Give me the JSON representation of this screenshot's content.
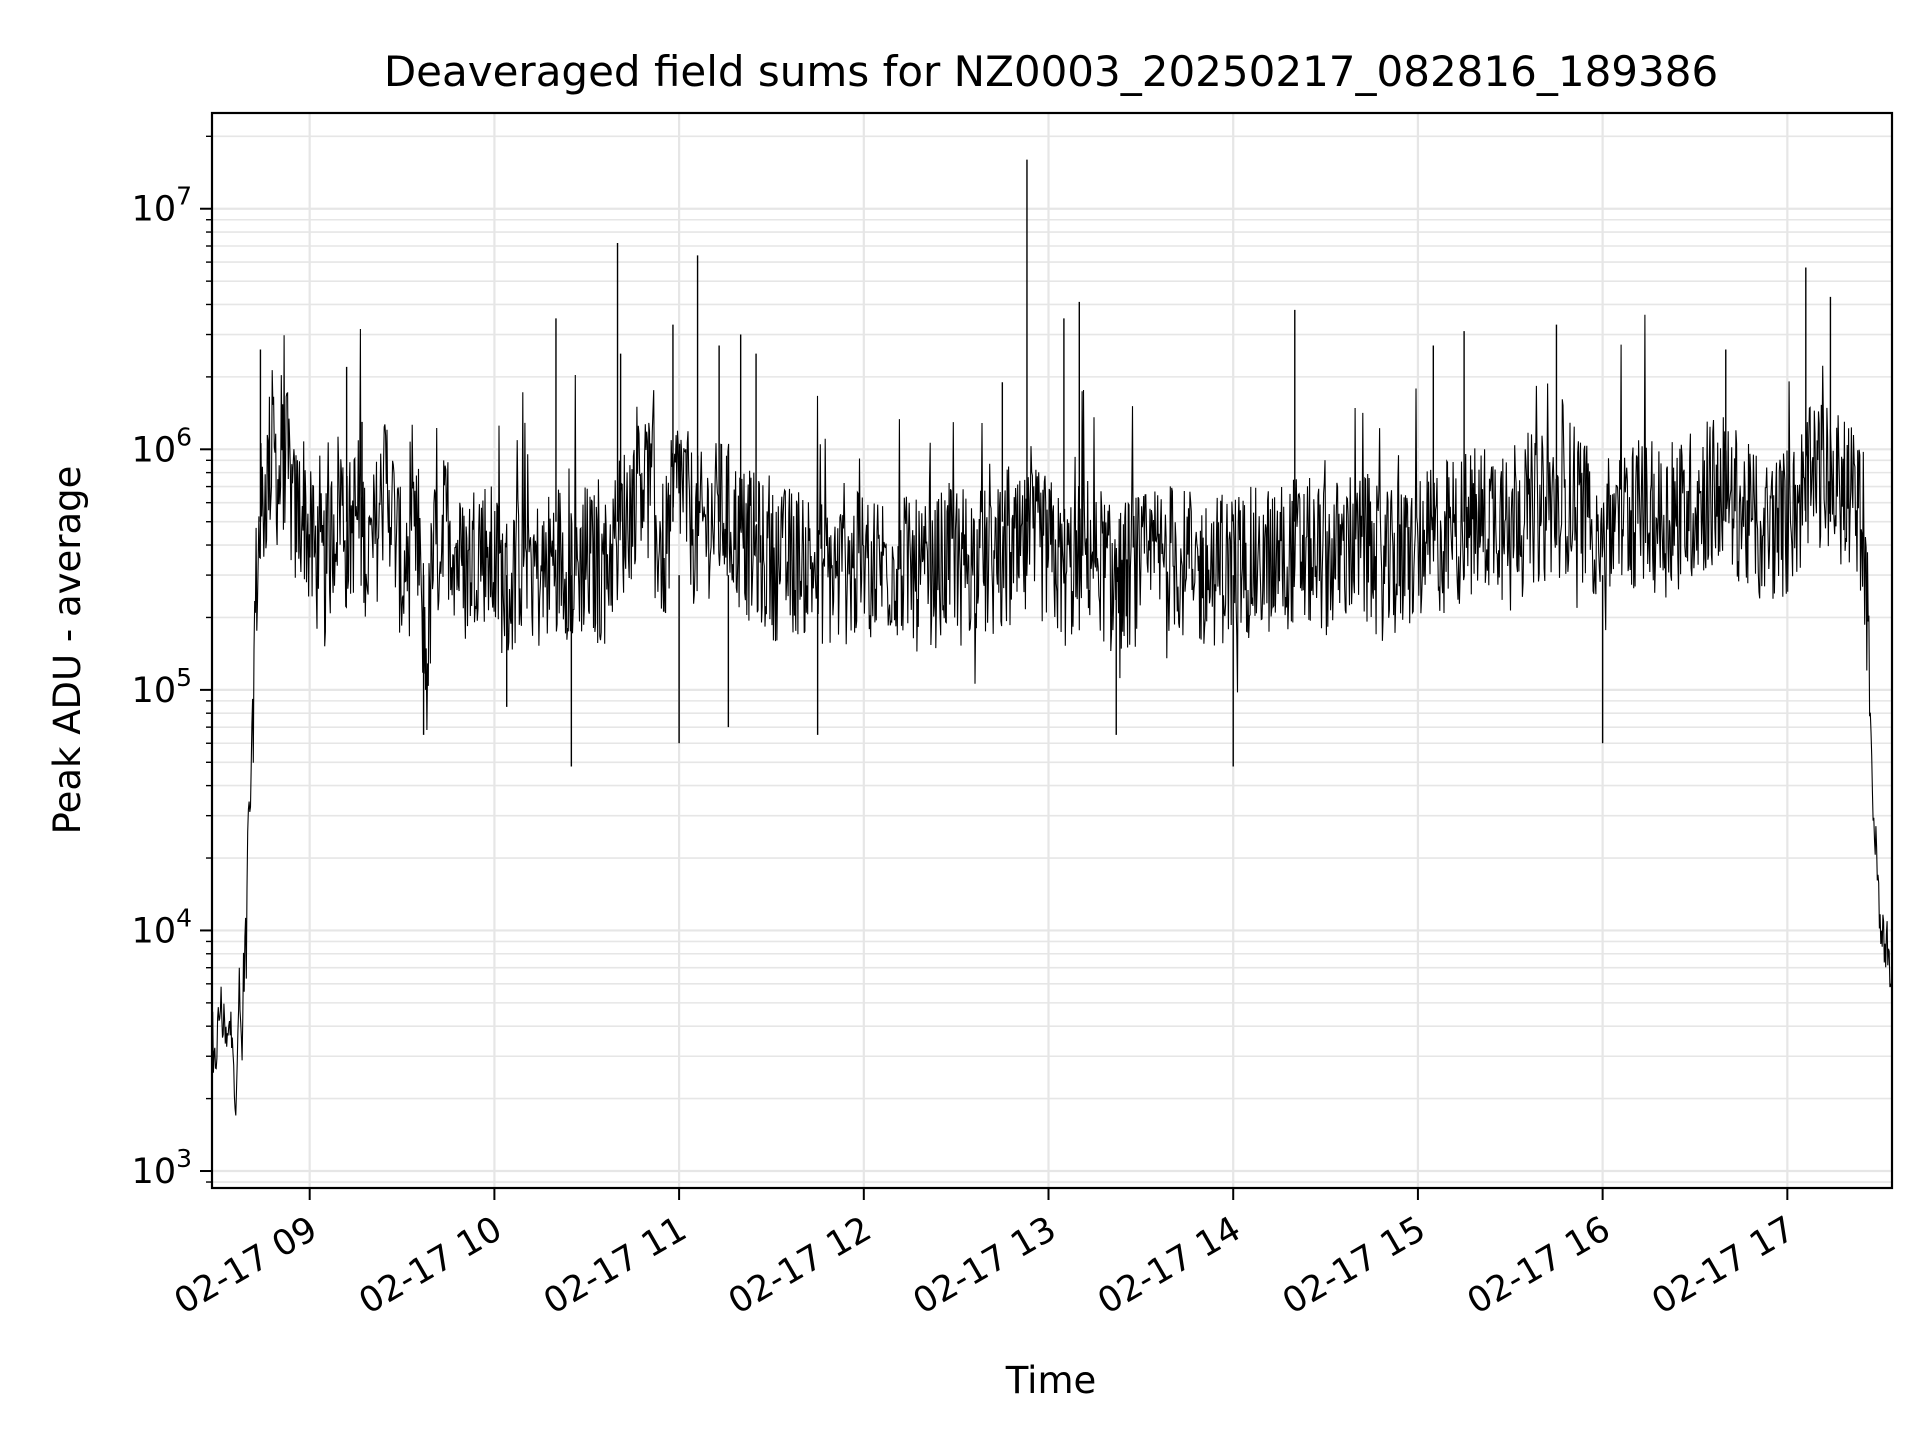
{
  "chart_data": {
    "type": "line",
    "title": "Deaveraged field sums for NZ0003_20250217_082816_189386",
    "xlabel": "Time",
    "ylabel": "Peak ADU - average",
    "yscale": "log",
    "ylim": [
      850,
      25000000
    ],
    "xlim": [
      "2025-02-17T08:28:16",
      "2025-02-17T17:34:00"
    ],
    "x_ticks": [
      {
        "t": "2025-02-17T09:00",
        "label": "02-17 09"
      },
      {
        "t": "2025-02-17T10:00",
        "label": "02-17 10"
      },
      {
        "t": "2025-02-17T11:00",
        "label": "02-17 11"
      },
      {
        "t": "2025-02-17T12:00",
        "label": "02-17 12"
      },
      {
        "t": "2025-02-17T13:00",
        "label": "02-17 13"
      },
      {
        "t": "2025-02-17T14:00",
        "label": "02-17 14"
      },
      {
        "t": "2025-02-17T15:00",
        "label": "02-17 15"
      },
      {
        "t": "2025-02-17T16:00",
        "label": "02-17 16"
      },
      {
        "t": "2025-02-17T17:00",
        "label": "02-17 17"
      }
    ],
    "y_ticks": [
      {
        "value": 1000,
        "base": "10",
        "exp": "3"
      },
      {
        "value": 10000,
        "base": "10",
        "exp": "4"
      },
      {
        "value": 100000,
        "base": "10",
        "exp": "5"
      },
      {
        "value": 1000000,
        "base": "10",
        "exp": "6"
      },
      {
        "value": 10000000,
        "base": "10",
        "exp": "7"
      }
    ],
    "grid": true,
    "line_color": "#000000",
    "grid_color": "#e6e6e6",
    "series": [
      {
        "x": [
          "2025-02-17T08:28:16",
          "2025-02-17T08:31",
          "2025-02-17T08:33",
          "2025-02-17T08:35",
          "2025-02-17T08:36",
          "2025-02-17T08:37",
          "2025-02-17T08:38",
          "2025-02-17T08:39",
          "2025-02-17T08:40",
          "2025-02-17T08:41",
          "2025-02-17T08:42",
          "2025-02-17T08:43",
          "2025-02-17T08:45",
          "2025-02-17T08:47",
          "2025-02-17T08:48",
          "2025-02-17T08:50",
          "2025-02-17T08:52",
          "2025-02-17T08:53",
          "2025-02-17T08:55",
          "2025-02-17T08:58",
          "2025-02-17T09:00",
          "2025-02-17T09:05",
          "2025-02-17T09:10",
          "2025-02-17T09:12",
          "2025-02-17T09:15",
          "2025-02-17T09:20",
          "2025-02-17T09:25",
          "2025-02-17T09:30",
          "2025-02-17T09:35",
          "2025-02-17T09:38",
          "2025-02-17T09:40",
          "2025-02-17T09:45",
          "2025-02-17T09:50",
          "2025-02-17T09:55",
          "2025-02-17T10:00",
          "2025-02-17T10:05",
          "2025-02-17T10:10",
          "2025-02-17T10:15",
          "2025-02-17T10:20",
          "2025-02-17T10:25",
          "2025-02-17T10:30",
          "2025-02-17T10:35",
          "2025-02-17T10:40",
          "2025-02-17T10:45",
          "2025-02-17T10:47",
          "2025-02-17T10:50",
          "2025-02-17T10:55",
          "2025-02-17T11:00",
          "2025-02-17T11:05",
          "2025-02-17T11:10",
          "2025-02-17T11:15",
          "2025-02-17T11:20",
          "2025-02-17T11:25",
          "2025-02-17T11:30",
          "2025-02-17T11:40",
          "2025-02-17T11:50",
          "2025-02-17T12:00",
          "2025-02-17T12:10",
          "2025-02-17T12:20",
          "2025-02-17T12:30",
          "2025-02-17T12:40",
          "2025-02-17T12:50",
          "2025-02-17T12:55",
          "2025-02-17T13:00",
          "2025-02-17T13:05",
          "2025-02-17T13:10",
          "2025-02-17T13:15",
          "2025-02-17T13:20",
          "2025-02-17T13:30",
          "2025-02-17T13:40",
          "2025-02-17T13:50",
          "2025-02-17T14:00",
          "2025-02-17T14:10",
          "2025-02-17T14:20",
          "2025-02-17T14:30",
          "2025-02-17T14:40",
          "2025-02-17T14:50",
          "2025-02-17T15:00",
          "2025-02-17T15:10",
          "2025-02-17T15:20",
          "2025-02-17T15:30",
          "2025-02-17T15:40",
          "2025-02-17T15:50",
          "2025-02-17T16:00",
          "2025-02-17T16:10",
          "2025-02-17T16:20",
          "2025-02-17T16:30",
          "2025-02-17T16:40",
          "2025-02-17T16:50",
          "2025-02-17T17:00",
          "2025-02-17T17:05",
          "2025-02-17T17:10",
          "2025-02-17T17:15",
          "2025-02-17T17:20",
          "2025-02-17T17:25",
          "2025-02-17T17:28",
          "2025-02-17T17:30",
          "2025-02-17T17:32",
          "2025-02-17T17:34"
        ],
        "y": [
          2000,
          5000,
          3200,
          4500,
          1400,
          6000,
          2900,
          9000,
          25000,
          40000,
          160000,
          350000,
          600000,
          900000,
          1100000,
          700000,
          1000000,
          800000,
          500000,
          600000,
          400000,
          300000,
          700000,
          400000,
          550000,
          350000,
          800000,
          300000,
          400000,
          120000,
          350000,
          500000,
          300000,
          420000,
          330000,
          250000,
          450000,
          280000,
          380000,
          320000,
          350000,
          300000,
          450000,
          600000,
          900000,
          700000,
          350000,
          800000,
          450000,
          500000,
          550000,
          420000,
          380000,
          330000,
          350000,
          300000,
          330000,
          340000,
          280000,
          370000,
          330000,
          350000,
          400000,
          380000,
          300000,
          350000,
          400000,
          280000,
          320000,
          360000,
          300000,
          330000,
          340000,
          380000,
          350000,
          400000,
          320000,
          380000,
          450000,
          500000,
          600000,
          550000,
          650000,
          450000,
          550000,
          500000,
          600000,
          700000,
          450000,
          500000,
          650000,
          800000,
          700000,
          650000,
          500000,
          30000,
          12000,
          9000,
          7000
        ]
      }
    ],
    "spikes": [
      {
        "x": "2025-02-17T08:44",
        "y": 2600000
      },
      {
        "x": "2025-02-17T09:12",
        "y": 2200000
      },
      {
        "x": "2025-02-17T09:17",
        "y": 1300000
      },
      {
        "x": "2025-02-17T09:37",
        "y": 65000
      },
      {
        "x": "2025-02-17T10:04",
        "y": 85000
      },
      {
        "x": "2025-02-17T10:20",
        "y": 3500000
      },
      {
        "x": "2025-02-17T10:25",
        "y": 48000
      },
      {
        "x": "2025-02-17T10:40",
        "y": 7200000
      },
      {
        "x": "2025-02-17T10:41",
        "y": 2500000
      },
      {
        "x": "2025-02-17T10:58",
        "y": 3300000
      },
      {
        "x": "2025-02-17T11:00",
        "y": 60000
      },
      {
        "x": "2025-02-17T11:06",
        "y": 6400000
      },
      {
        "x": "2025-02-17T11:13",
        "y": 2700000
      },
      {
        "x": "2025-02-17T11:16",
        "y": 70000
      },
      {
        "x": "2025-02-17T11:20",
        "y": 3000000
      },
      {
        "x": "2025-02-17T11:25",
        "y": 2500000
      },
      {
        "x": "2025-02-17T11:45",
        "y": 65000
      },
      {
        "x": "2025-02-17T12:45",
        "y": 1900000
      },
      {
        "x": "2025-02-17T12:53",
        "y": 16000000
      },
      {
        "x": "2025-02-17T13:05",
        "y": 3500000
      },
      {
        "x": "2025-02-17T13:10",
        "y": 4100000
      },
      {
        "x": "2025-02-17T13:22",
        "y": 65000
      },
      {
        "x": "2025-02-17T14:00",
        "y": 48000
      },
      {
        "x": "2025-02-17T14:20",
        "y": 3800000
      },
      {
        "x": "2025-02-17T15:05",
        "y": 2700000
      },
      {
        "x": "2025-02-17T15:15",
        "y": 3100000
      },
      {
        "x": "2025-02-17T15:45",
        "y": 3300000
      },
      {
        "x": "2025-02-17T16:00",
        "y": 60000
      },
      {
        "x": "2025-02-17T16:40",
        "y": 2600000
      },
      {
        "x": "2025-02-17T17:06",
        "y": 5700000
      },
      {
        "x": "2025-02-17T17:14",
        "y": 4300000
      }
    ]
  }
}
